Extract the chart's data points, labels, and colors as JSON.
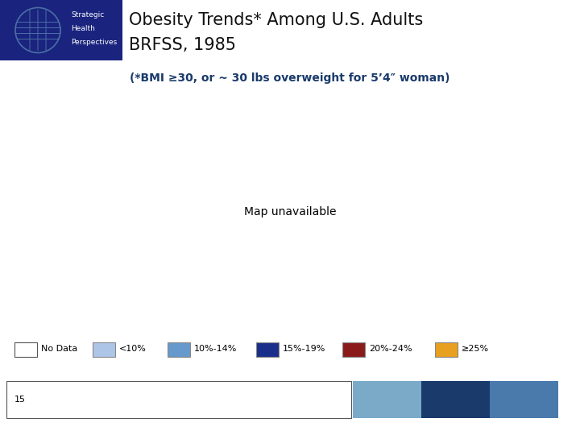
{
  "title_line1": "Obesity Trends* Among U.S. Adults",
  "title_line2": "BRFSS, 1985",
  "subtitle": "(*BMI ≥30, or ~ 30 lbs overweight for 5’4″ woman)",
  "header_bg": "#1a237e",
  "header_text": "white",
  "header_label1": "Strategic",
  "header_label2": "Health",
  "header_label3": "Perspectives",
  "title_color": "#111111",
  "subtitle_color": "#1a3a6b",
  "legend_labels": [
    "No Data",
    "<10%",
    "10%-14%",
    "15%-19%",
    "20%-24%",
    "≥25%"
  ],
  "legend_colors": [
    "#ffffff",
    "#adc6e8",
    "#6699cc",
    "#1a2f8a",
    "#8b1a1a",
    "#e8a020"
  ],
  "legend_edge_colors": [
    "#555555",
    "#888888",
    "#888888",
    "#888888",
    "#888888",
    "#888888"
  ],
  "slide_number": "15",
  "bar_colors_bottom": [
    "#7aaac8",
    "#1a3a6b",
    "#4a7aab"
  ],
  "state_colors": {
    "Alabama": "#ffffff",
    "Alaska": "#ffffff",
    "Arizona": "#adc6e8",
    "Arkansas": "#ffffff",
    "California": "#adc6e8",
    "Colorado": "#adc6e8",
    "Connecticut": "#adc6e8",
    "Delaware": "#ffffff",
    "Florida": "#adc6e8",
    "Georgia": "#6699cc",
    "Hawaii": "#ffffff",
    "Idaho": "#adc6e8",
    "Illinois": "#adc6e8",
    "Indiana": "#6699cc",
    "Iowa": "#ffffff",
    "Kansas": "#ffffff",
    "Kentucky": "#6699cc",
    "Louisiana": "#ffffff",
    "Maine": "#adc6e8",
    "Maryland": "#adc6e8",
    "Massachusetts": "#adc6e8",
    "Michigan": "#adc6e8",
    "Minnesota": "#adc6e8",
    "Mississippi": "#ffffff",
    "Missouri": "#ffffff",
    "Montana": "#adc6e8",
    "Nebraska": "#ffffff",
    "Nevada": "#adc6e8",
    "New Hampshire": "#adc6e8",
    "New Jersey": "#adc6e8",
    "New Mexico": "#adc6e8",
    "New York": "#adc6e8",
    "North Carolina": "#adc6e8",
    "North Dakota": "#6699cc",
    "Ohio": "#6699cc",
    "Oklahoma": "#ffffff",
    "Oregon": "#ffffff",
    "Pennsylvania": "#adc6e8",
    "Rhode Island": "#adc6e8",
    "South Carolina": "#6699cc",
    "South Dakota": "#ffffff",
    "Tennessee": "#adc6e8",
    "Texas": "#ffffff",
    "Utah": "#ffffff",
    "Vermont": "#ffffff",
    "Virginia": "#adc6e8",
    "Washington": "#adc6e8",
    "West Virginia": "#6699cc",
    "Wisconsin": "#1a2f8a",
    "Wyoming": "#ffffff"
  },
  "map_edge_color": "#222222",
  "map_edge_width": 0.5,
  "bg_color": "#ffffff",
  "fig_width": 7.2,
  "fig_height": 5.4
}
